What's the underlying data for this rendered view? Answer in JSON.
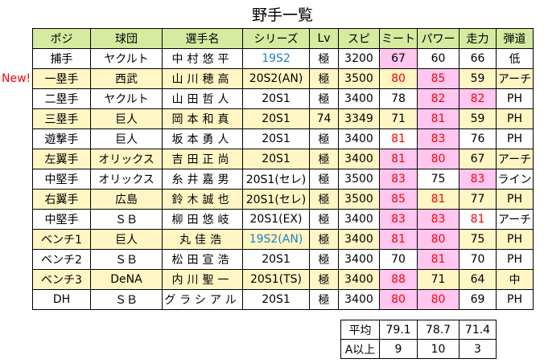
{
  "title": "野手一覧",
  "new_badge": "New!",
  "headers": [
    "ポジ",
    "球団",
    "選手名",
    "シリーズ",
    "Lv",
    "スピ",
    "ミート",
    "パワー",
    "走力",
    "弾道"
  ],
  "rows": [
    {
      "pos": "捕手",
      "team": "ヤクルト",
      "name": "中村悠平",
      "series": "19S2",
      "series_color": "blue",
      "lv": "極",
      "spi": "3200",
      "meet": "67",
      "meet_pink": true,
      "meet_red": false,
      "power": "60",
      "power_pink": false,
      "power_red": false,
      "speed": "66",
      "speed_pink": false,
      "speed_red": false,
      "traj": "低"
    },
    {
      "pos": "一塁手",
      "team": "西武",
      "name": "山川穂高",
      "series": "20S2(AN)",
      "series_color": "",
      "lv": "極",
      "spi": "3500",
      "meet": "80",
      "meet_pink": false,
      "meet_red": true,
      "power": "85",
      "power_pink": true,
      "power_red": true,
      "speed": "59",
      "speed_pink": false,
      "speed_red": false,
      "traj": "アーチ"
    },
    {
      "pos": "二塁手",
      "team": "ヤクルト",
      "name": "山田哲人",
      "series": "20S1",
      "series_color": "",
      "lv": "極",
      "spi": "3400",
      "meet": "78",
      "meet_pink": false,
      "meet_red": false,
      "power": "82",
      "power_pink": true,
      "power_red": true,
      "speed": "82",
      "speed_pink": true,
      "speed_red": true,
      "traj": "PH"
    },
    {
      "pos": "三塁手",
      "team": "巨人",
      "name": "岡本和真",
      "series": "20S1",
      "series_color": "",
      "lv": "74",
      "spi": "3349",
      "meet": "71",
      "meet_pink": false,
      "meet_red": false,
      "power": "81",
      "power_pink": true,
      "power_red": true,
      "speed": "59",
      "speed_pink": false,
      "speed_red": false,
      "traj": "PH"
    },
    {
      "pos": "遊撃手",
      "team": "巨人",
      "name": "坂本勇人",
      "series": "20S1",
      "series_color": "",
      "lv": "極",
      "spi": "3400",
      "meet": "81",
      "meet_pink": false,
      "meet_red": true,
      "power": "83",
      "power_pink": true,
      "power_red": true,
      "speed": "76",
      "speed_pink": false,
      "speed_red": false,
      "traj": "PH"
    },
    {
      "pos": "左翼手",
      "team": "オリックス",
      "name": "吉田正尚",
      "series": "20S1",
      "series_color": "",
      "lv": "極",
      "spi": "3400",
      "meet": "81",
      "meet_pink": true,
      "meet_red": true,
      "power": "80",
      "power_pink": true,
      "power_red": true,
      "speed": "67",
      "speed_pink": false,
      "speed_red": false,
      "traj": "アーチ"
    },
    {
      "pos": "中堅手",
      "team": "オリックス",
      "name": "糸井嘉男",
      "series": "20S1(セレ)",
      "series_color": "",
      "lv": "極",
      "spi": "3500",
      "meet": "83",
      "meet_pink": true,
      "meet_red": true,
      "power": "75",
      "power_pink": false,
      "power_red": false,
      "speed": "83",
      "speed_pink": true,
      "speed_red": true,
      "traj": "ライン"
    },
    {
      "pos": "右翼手",
      "team": "広島",
      "name": "鈴木誠也",
      "series": "20S1(セレ)",
      "series_color": "",
      "lv": "極",
      "spi": "3500",
      "meet": "85",
      "meet_pink": true,
      "meet_red": true,
      "power": "81",
      "power_pink": false,
      "power_red": true,
      "speed": "77",
      "speed_pink": false,
      "speed_red": false,
      "traj": "PH"
    },
    {
      "pos": "中堅手",
      "team": "ＳＢ",
      "name": "柳田悠岐",
      "series": "20S1(EX)",
      "series_color": "",
      "lv": "極",
      "spi": "3400",
      "meet": "83",
      "meet_pink": true,
      "meet_red": true,
      "power": "83",
      "power_pink": true,
      "power_red": true,
      "speed": "81",
      "speed_pink": false,
      "speed_red": true,
      "traj": "アーチ"
    },
    {
      "pos": "ベンチ1",
      "team": "巨人",
      "name": "丸佳浩",
      "series": "19S2(AN)",
      "series_color": "blue",
      "lv": "極",
      "spi": "3400",
      "meet": "81",
      "meet_pink": true,
      "meet_red": true,
      "power": "80",
      "power_pink": true,
      "power_red": true,
      "speed": "75",
      "speed_pink": false,
      "speed_red": false,
      "traj": "PH"
    },
    {
      "pos": "ベンチ2",
      "team": "ＳＢ",
      "name": "松田宣浩",
      "series": "20S1",
      "series_color": "",
      "lv": "極",
      "spi": "3400",
      "meet": "70",
      "meet_pink": false,
      "meet_red": false,
      "power": "81",
      "power_pink": true,
      "power_red": true,
      "speed": "70",
      "speed_pink": false,
      "speed_red": false,
      "traj": "PH"
    },
    {
      "pos": "ベンチ3",
      "team": "DeNA",
      "name": "内川聖一",
      "series": "20S1(TS)",
      "series_color": "",
      "lv": "極",
      "spi": "3400",
      "meet": "88",
      "meet_pink": true,
      "meet_red": true,
      "power": "71",
      "power_pink": false,
      "power_red": false,
      "speed": "64",
      "speed_pink": false,
      "speed_red": false,
      "traj": "中"
    },
    {
      "pos": "DH",
      "team": "ＳＢ",
      "name": "グラシアル",
      "series": "20S1",
      "series_color": "",
      "lv": "極",
      "spi": "3400",
      "meet": "80",
      "meet_pink": true,
      "meet_red": true,
      "power": "80",
      "power_pink": true,
      "power_red": true,
      "speed": "69",
      "speed_pink": false,
      "speed_red": false,
      "traj": "PH"
    }
  ],
  "stats": {
    "average": {
      "label": "平均",
      "meet": "79.1",
      "power": "78.7",
      "speed": "71.4"
    },
    "a_or_above": {
      "label": "A以上",
      "meet": "9",
      "power": "10",
      "speed": "3"
    }
  },
  "colors": {
    "header_bg": "#d6eaa0",
    "alt_row_bg": "#fff6c4",
    "highlight_bg": "#ffc6f0",
    "highlight_text": "#ff0000",
    "series_blue": "#1f7fc4"
  }
}
